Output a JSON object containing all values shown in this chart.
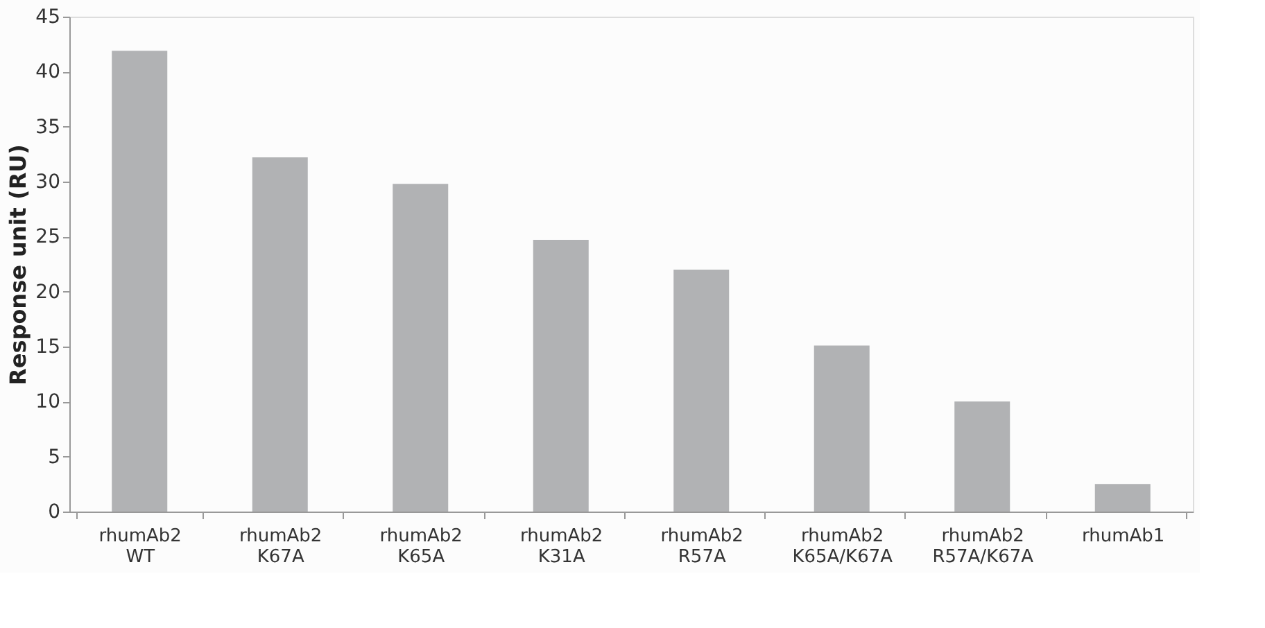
{
  "chart_data": {
    "type": "bar",
    "ylabel": "Response unit (RU)",
    "categories": [
      "rhumAb2\nWT",
      "rhumAb2\nK67A",
      "rhumAb2\nK65A",
      "rhumAb2\nK31A",
      "rhumAb2\nR57A",
      "rhumAb2\nK65A/K67A",
      "rhumAb2\nR57A/K67A",
      "rhumAb1"
    ],
    "values": [
      41.9,
      32.2,
      29.8,
      24.7,
      22.0,
      15.1,
      10.0,
      2.5
    ],
    "color": "#b1b2b4",
    "ylim": [
      0,
      45
    ],
    "yticks": [
      0,
      5,
      10,
      15,
      20,
      25,
      30,
      35,
      40,
      45
    ],
    "grid": false
  }
}
